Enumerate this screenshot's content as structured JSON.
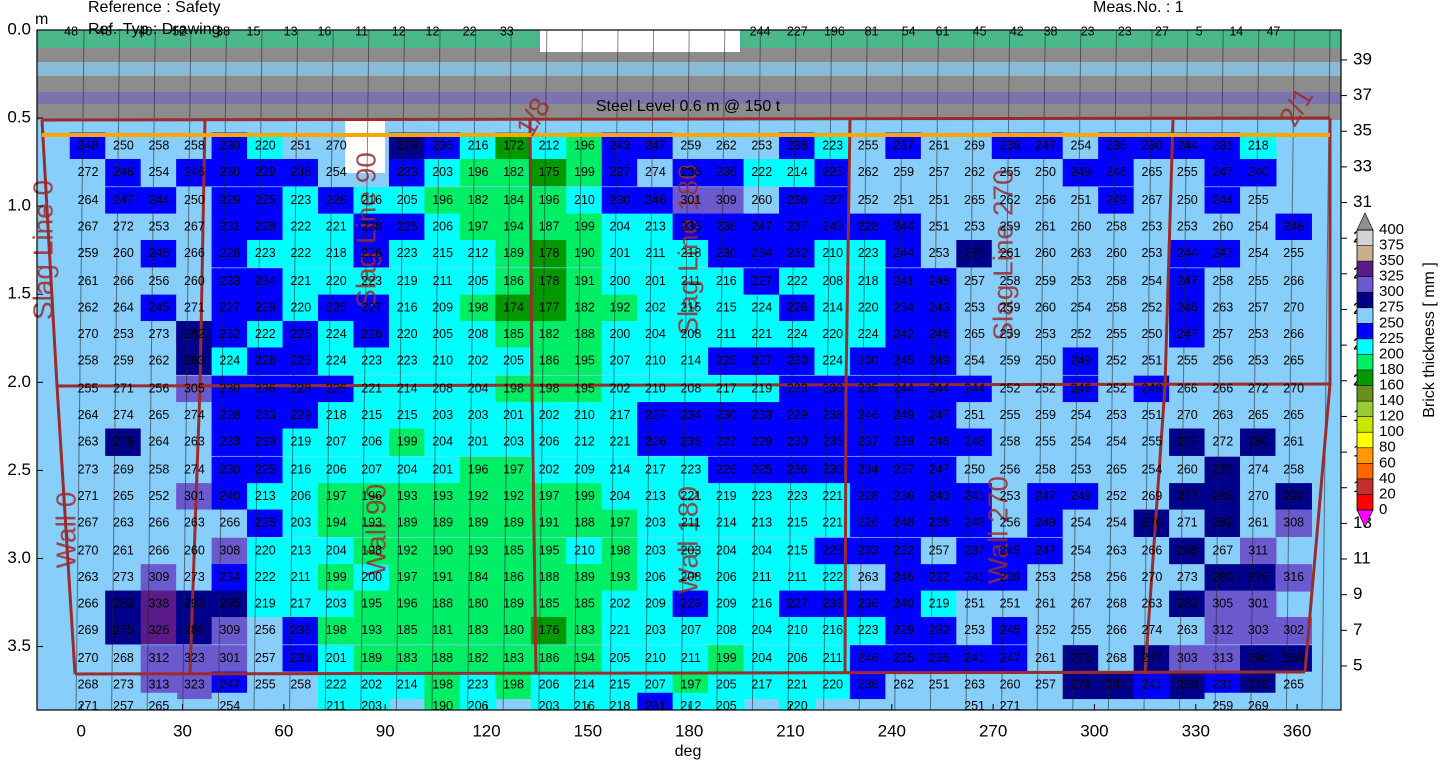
{
  "header": {
    "reference": "Reference : Safety",
    "ref_type": "Ref.-Typ : Drawing",
    "meas_no": "Meas.No. : 1"
  },
  "chart_data": {
    "type": "contour",
    "x_label": "deg",
    "y_unit": "m",
    "annotation": "Steel Level 0.6 m @ 150 t",
    "zone_labels": [
      "Slag Line 0",
      "Slag Line 90",
      "Slag Line 180",
      "Slag Line 270",
      "Wall 0",
      "Wall 90",
      "Wall 180",
      "Wall 270",
      "1/8",
      "2/1"
    ],
    "xlim": [
      -13.1,
      373
    ],
    "xticks": [
      0,
      30,
      60,
      90,
      120,
      150,
      180,
      210,
      240,
      270,
      300,
      330,
      360
    ],
    "ylim": [
      0,
      3.86
    ],
    "yticks": [
      {
        "value": 0,
        "label": "0.0"
      },
      {
        "value": 0.5,
        "label": "0.5"
      },
      {
        "value": 1,
        "label": "1.0"
      },
      {
        "value": 1.5,
        "label": "1.5"
      },
      {
        "value": 2,
        "label": "2.0"
      },
      {
        "value": 2.5,
        "label": "2.5"
      },
      {
        "value": 3,
        "label": "3.0"
      },
      {
        "value": 3.5,
        "label": "3.5"
      }
    ],
    "y2lim": [
      40.68,
      2.53
    ],
    "y2ticks": [
      39,
      37,
      35,
      33,
      31,
      29,
      27,
      25,
      23,
      21,
      19,
      17,
      15,
      13,
      11,
      9,
      7,
      5
    ],
    "colorbar": {
      "label": "Brick thickness [ mm ]",
      "levels": [
        0,
        20,
        40,
        60,
        80,
        100,
        120,
        140,
        160,
        180,
        200,
        225,
        250,
        275,
        300,
        325,
        350,
        375,
        400
      ],
      "colors": [
        "#ff0000",
        "#c03030",
        "#ff6600",
        "#ff9900",
        "#ffff00",
        "#c8e600",
        "#99cc33",
        "#6b8e23",
        "#009900",
        "#00ee66",
        "#00ffff",
        "#0000ff",
        "#87cefa",
        "#00008b",
        "#6a5acd",
        "#5a1a8a",
        "#c8b08c",
        "#d3d3d3",
        "#909090"
      ],
      "under_color": "#ff00ff"
    },
    "top_row": {
      "x": [
        -3,
        7,
        19,
        29,
        42,
        51,
        62,
        72,
        83,
        94,
        104,
        115,
        126,
        201,
        212,
        223,
        234,
        245,
        255,
        266,
        277,
        287,
        298,
        309,
        320,
        331,
        342,
        353
      ],
      "values": [
        48,
        48,
        40,
        52,
        38,
        15,
        13,
        16,
        11,
        12,
        12,
        22,
        33,
        244,
        227,
        196,
        81,
        54,
        61,
        45,
        42,
        38,
        23,
        23,
        27,
        5,
        14,
        47
      ]
    },
    "x": [
      2,
      12.5,
      23,
      33.5,
      44,
      54.5,
      65,
      75.5,
      86,
      96.5,
      107,
      117.5,
      128,
      138.5,
      149,
      159.5,
      170,
      180.5,
      191,
      201.5,
      212,
      222.5,
      233,
      243.5,
      254,
      264.5,
      275,
      285.5,
      296,
      306.5,
      317,
      327.5,
      338,
      348.5,
      359
    ],
    "y": [
      0.66,
      0.81,
      0.97,
      1.12,
      1.27,
      1.43,
      1.58,
      1.73,
      1.88,
      2.04,
      2.19,
      2.34,
      2.5,
      2.65,
      2.8,
      2.96,
      3.11,
      3.26,
      3.41,
      3.57,
      3.72,
      3.84
    ],
    "z": [
      [
        248,
        250,
        258,
        258,
        230,
        220,
        251,
        270,
        null,
        279,
        236,
        216,
        172,
        212,
        196,
        243,
        247,
        259,
        262,
        253,
        238,
        223,
        255,
        237,
        261,
        269,
        239,
        247,
        254,
        235,
        230,
        244,
        231,
        218,
        null
      ],
      [
        272,
        246,
        254,
        246,
        230,
        229,
        236,
        254,
        null,
        233,
        203,
        196,
        182,
        175,
        199,
        227,
        274,
        236,
        236,
        222,
        214,
        225,
        262,
        259,
        257,
        262,
        255,
        250,
        249,
        246,
        265,
        255,
        247,
        240,
        null
      ],
      [
        264,
        247,
        244,
        250,
        229,
        225,
        223,
        226,
        216,
        205,
        196,
        182,
        184,
        196,
        210,
        230,
        246,
        301,
        309,
        260,
        236,
        227,
        252,
        251,
        251,
        265,
        262,
        256,
        251,
        249,
        267,
        250,
        244,
        255,
        null
      ],
      [
        267,
        272,
        253,
        267,
        231,
        228,
        222,
        221,
        228,
        225,
        206,
        197,
        194,
        187,
        199,
        204,
        213,
        236,
        236,
        247,
        237,
        249,
        228,
        244,
        251,
        253,
        259,
        261,
        260,
        258,
        253,
        253,
        260,
        254,
        246
      ],
      [
        259,
        260,
        246,
        266,
        228,
        223,
        222,
        218,
        226,
        223,
        215,
        212,
        189,
        178,
        190,
        201,
        211,
        218,
        230,
        234,
        232,
        210,
        223,
        244,
        253,
        276,
        261,
        260,
        263,
        260,
        253,
        244,
        247,
        254,
        255
      ],
      [
        261,
        266,
        256,
        260,
        233,
        234,
        221,
        220,
        223,
        219,
        211,
        205,
        186,
        178,
        191,
        200,
        201,
        211,
        216,
        227,
        222,
        208,
        218,
        241,
        248,
        257,
        258,
        259,
        253,
        258,
        254,
        247,
        258,
        255,
        266
      ],
      [
        262,
        264,
        245,
        271,
        227,
        229,
        220,
        225,
        227,
        216,
        209,
        198,
        174,
        177,
        182,
        192,
        202,
        215,
        215,
        224,
        226,
        214,
        220,
        234,
        243,
        253,
        259,
        260,
        254,
        258,
        252,
        246,
        263,
        257,
        270
      ],
      [
        270,
        253,
        273,
        282,
        232,
        222,
        225,
        224,
        226,
        220,
        205,
        208,
        185,
        182,
        188,
        200,
        204,
        208,
        211,
        221,
        224,
        220,
        224,
        242,
        246,
        265,
        259,
        253,
        252,
        255,
        250,
        247,
        257,
        253,
        266
      ],
      [
        258,
        259,
        262,
        283,
        224,
        228,
        225,
        224,
        223,
        223,
        210,
        202,
        205,
        186,
        195,
        207,
        210,
        214,
        225,
        227,
        230,
        224,
        230,
        245,
        249,
        254,
        259,
        250,
        249,
        252,
        251,
        255,
        256,
        253,
        265
      ],
      [
        255,
        271,
        256,
        305,
        230,
        236,
        228,
        226,
        221,
        214,
        208,
        204,
        198,
        198,
        195,
        202,
        210,
        208,
        217,
        219,
        233,
        230,
        235,
        244,
        244,
        244,
        252,
        252,
        246,
        252,
        249,
        266,
        266,
        272,
        270
      ],
      [
        264,
        274,
        265,
        274,
        228,
        233,
        229,
        218,
        215,
        215,
        203,
        203,
        201,
        202,
        210,
        217,
        227,
        234,
        230,
        233,
        229,
        238,
        246,
        249,
        247,
        251,
        255,
        259,
        254,
        253,
        251,
        270,
        263,
        265,
        265
      ],
      [
        263,
        278,
        264,
        263,
        233,
        239,
        219,
        207,
        206,
        199,
        204,
        201,
        203,
        206,
        212,
        221,
        226,
        236,
        227,
        229,
        230,
        235,
        237,
        239,
        246,
        248,
        258,
        255,
        254,
        254,
        255,
        277,
        272,
        280,
        261
      ],
      [
        273,
        269,
        258,
        274,
        230,
        225,
        216,
        206,
        207,
        204,
        201,
        196,
        197,
        202,
        209,
        214,
        217,
        223,
        226,
        225,
        236,
        230,
        234,
        237,
        247,
        250,
        256,
        258,
        253,
        265,
        254,
        260,
        278,
        274,
        258
      ],
      [
        271,
        265,
        252,
        301,
        240,
        213,
        206,
        197,
        196,
        193,
        193,
        192,
        192,
        197,
        199,
        204,
        213,
        221,
        219,
        223,
        223,
        221,
        228,
        236,
        240,
        241,
        253,
        247,
        249,
        252,
        269,
        277,
        285,
        270,
        292
      ],
      [
        267,
        263,
        266,
        263,
        266,
        225,
        203,
        194,
        193,
        189,
        189,
        189,
        189,
        191,
        188,
        197,
        203,
        211,
        214,
        213,
        215,
        221,
        226,
        248,
        238,
        248,
        256,
        249,
        254,
        254,
        276,
        271,
        282,
        261,
        308
      ],
      [
        270,
        261,
        266,
        260,
        308,
        220,
        213,
        204,
        198,
        192,
        190,
        193,
        185,
        195,
        210,
        198,
        203,
        203,
        204,
        204,
        215,
        225,
        233,
        232,
        257,
        237,
        245,
        247,
        254,
        263,
        266,
        288,
        267,
        311,
        null
      ],
      [
        263,
        273,
        309,
        273,
        234,
        222,
        211,
        199,
        200,
        197,
        191,
        184,
        186,
        188,
        189,
        193,
        206,
        208,
        206,
        211,
        211,
        222,
        263,
        246,
        232,
        241,
        239,
        253,
        258,
        256,
        270,
        273,
        280,
        275,
        316
      ],
      [
        266,
        282,
        338,
        293,
        295,
        219,
        217,
        203,
        195,
        196,
        188,
        180,
        189,
        185,
        185,
        202,
        209,
        229,
        209,
        216,
        227,
        236,
        236,
        240,
        219,
        251,
        251,
        261,
        267,
        268,
        263,
        282,
        305,
        301,
        null
      ],
      [
        269,
        275,
        326,
        288,
        309,
        256,
        236,
        198,
        193,
        185,
        181,
        183,
        180,
        176,
        183,
        221,
        203,
        207,
        208,
        204,
        210,
        216,
        223,
        229,
        232,
        253,
        245,
        252,
        255,
        266,
        274,
        263,
        312,
        303,
        302
      ],
      [
        270,
        268,
        312,
        323,
        301,
        257,
        233,
        201,
        189,
        183,
        188,
        182,
        183,
        186,
        194,
        205,
        210,
        211,
        199,
        204,
        206,
        211,
        246,
        235,
        236,
        241,
        247,
        261,
        276,
        268,
        287,
        303,
        313,
        290,
        288
      ],
      [
        268,
        273,
        313,
        323,
        247,
        255,
        258,
        222,
        202,
        214,
        198,
        223,
        198,
        206,
        214,
        215,
        207,
        197,
        205,
        217,
        221,
        220,
        236,
        262,
        251,
        263,
        260,
        257,
        278,
        291,
        241,
        289,
        231,
        276,
        265
      ],
      [
        271,
        257,
        265,
        null,
        254,
        null,
        null,
        211,
        203,
        null,
        190,
        206,
        null,
        203,
        216,
        218,
        231,
        212,
        205,
        null,
        220,
        null,
        null,
        null,
        null,
        251,
        271,
        null,
        null,
        null,
        null,
        null,
        259,
        269,
        null
      ]
    ]
  }
}
